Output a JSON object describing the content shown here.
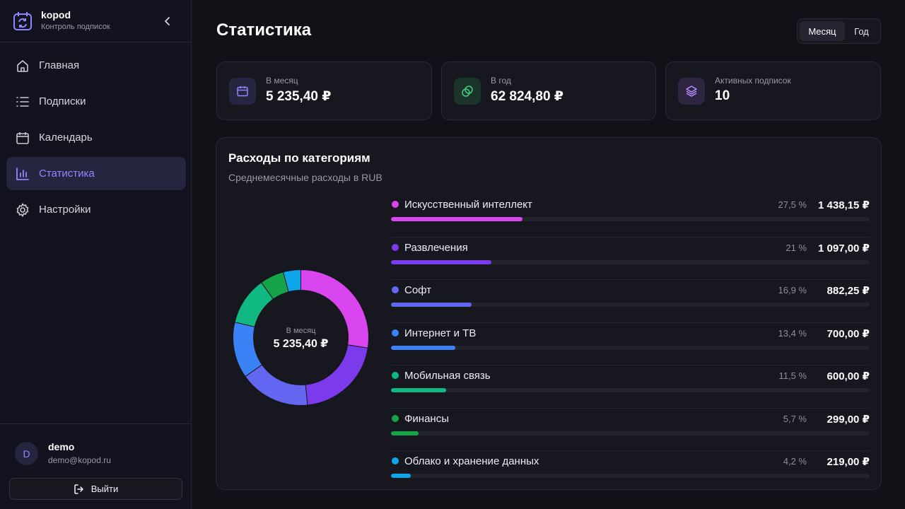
{
  "brand": {
    "name": "kopod",
    "subtitle": "Контроль подписок"
  },
  "sidebar": {
    "items": [
      {
        "label": "Главная",
        "icon": "home-icon",
        "active": false
      },
      {
        "label": "Подписки",
        "icon": "list-icon",
        "active": false
      },
      {
        "label": "Календарь",
        "icon": "calendar-icon",
        "active": false
      },
      {
        "label": "Статистика",
        "icon": "bar-chart-icon",
        "active": true
      },
      {
        "label": "Настройки",
        "icon": "gear-icon",
        "active": false
      }
    ]
  },
  "user": {
    "initial": "D",
    "name": "demo",
    "email": "demo@kopod.ru",
    "logout_label": "Выйти"
  },
  "header": {
    "title": "Статистика"
  },
  "period": {
    "options": [
      "Месяц",
      "Год"
    ],
    "selected": "Месяц"
  },
  "stats": [
    {
      "label": "В месяц",
      "value": "5 235,40 ₽",
      "icon": "calendar-icon",
      "accent": "#8f87ff"
    },
    {
      "label": "В год",
      "value": "62 824,80 ₽",
      "icon": "coins-icon",
      "accent": "#3ecf84"
    },
    {
      "label": "Активных подписок",
      "value": "10",
      "icon": "layers-icon",
      "accent": "#b58cff"
    }
  ],
  "categories_panel": {
    "title": "Расходы по категориям",
    "subtitle": "Среднемесячные расходы в RUB",
    "center_label": "В месяц",
    "center_value": "5 235,40 ₽"
  },
  "chart_data": {
    "type": "pie",
    "categories": [
      "Искусственный интеллект",
      "Развлечения",
      "Софт",
      "Интернет и ТВ",
      "Мобильная связь",
      "Финансы",
      "Облако и хранение данных"
    ],
    "values": [
      1438.15,
      1097.0,
      882.25,
      700.0,
      600.0,
      299.0,
      219.0
    ],
    "percent_labels": [
      "27,5 %",
      "21 %",
      "16,9 %",
      "13,4 %",
      "11,5 %",
      "5,7 %",
      "4,2 %"
    ],
    "amount_labels": [
      "1 438,15 ₽",
      "1 097,00 ₽",
      "882,25 ₽",
      "700,00 ₽",
      "600,00 ₽",
      "299,00 ₽",
      "219,00 ₽"
    ],
    "colors": [
      "#d946ef",
      "#7c3aed",
      "#6366f1",
      "#3b82f6",
      "#10b981",
      "#16a34a",
      "#0ea5e9"
    ],
    "bar_fill_fraction": [
      0.275,
      0.21,
      0.169,
      0.134,
      0.115,
      0.057,
      0.042
    ]
  }
}
